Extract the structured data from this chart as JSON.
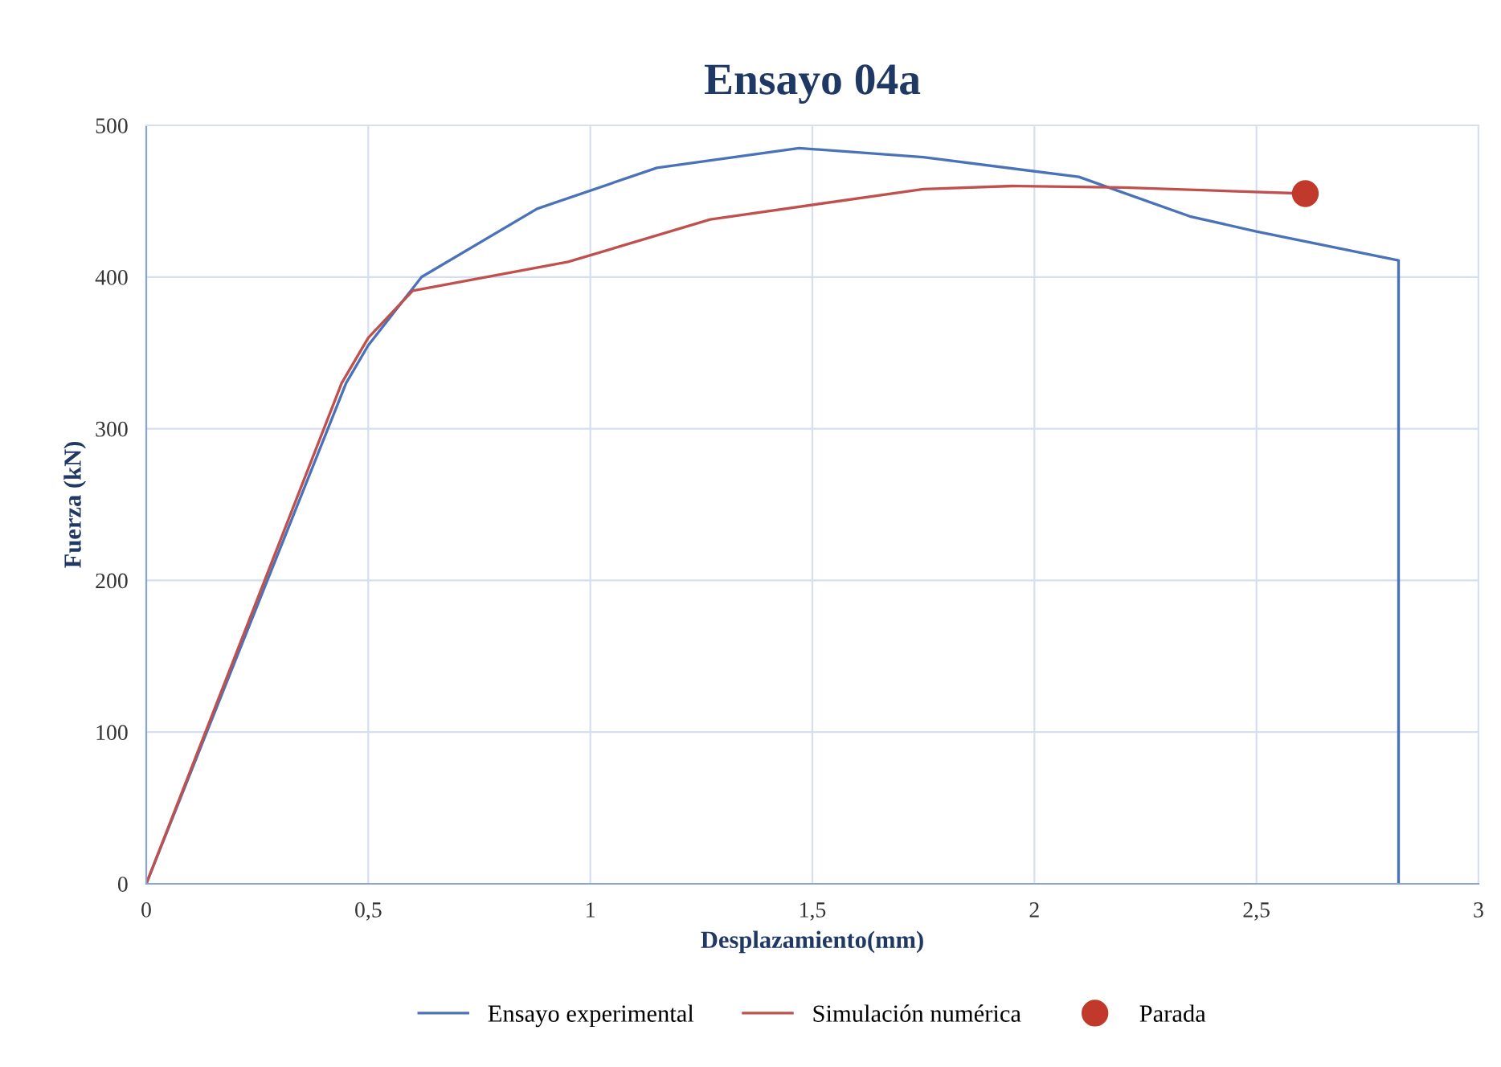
{
  "chart_data": {
    "type": "line",
    "title": "Ensayo 04a",
    "xlabel": "Desplazamiento(mm)",
    "ylabel": "Fuerza (kN)",
    "xlim": [
      0,
      3
    ],
    "xticks": [
      0,
      {
        "value": 0.5,
        "label": "0,5"
      },
      1,
      {
        "value": 1.5,
        "label": "1,5"
      },
      2,
      {
        "value": 2.5,
        "label": "2,5"
      },
      3
    ],
    "ylim": [
      0,
      500
    ],
    "yticks": [
      0,
      100,
      200,
      300,
      400,
      500
    ],
    "grid": true,
    "legend": "bottom",
    "marker": "none",
    "series": [
      {
        "name": "Ensayo experimental",
        "color": "#4a72b8",
        "x": [
          0,
          0.45,
          0.5,
          0.62,
          0.88,
          1.15,
          1.47,
          1.75,
          2.1,
          2.35,
          2.5,
          2.82,
          2.82
        ],
        "values": [
          0,
          330,
          355,
          400,
          445,
          472,
          485,
          479,
          466,
          440,
          430,
          411,
          0
        ]
      },
      {
        "name": "Simulación numérica",
        "color": "#c0504d",
        "x": [
          0,
          0.44,
          0.5,
          0.6,
          0.95,
          1.27,
          1.75,
          1.95,
          2.2,
          2.61
        ],
        "values": [
          0,
          330,
          360,
          391,
          410,
          438,
          458,
          460,
          459,
          455
        ]
      },
      {
        "name": "Parada",
        "type": "scatter",
        "marker": "circle",
        "color": "#c0392b",
        "x": [
          2.61
        ],
        "values": [
          455
        ]
      }
    ]
  }
}
